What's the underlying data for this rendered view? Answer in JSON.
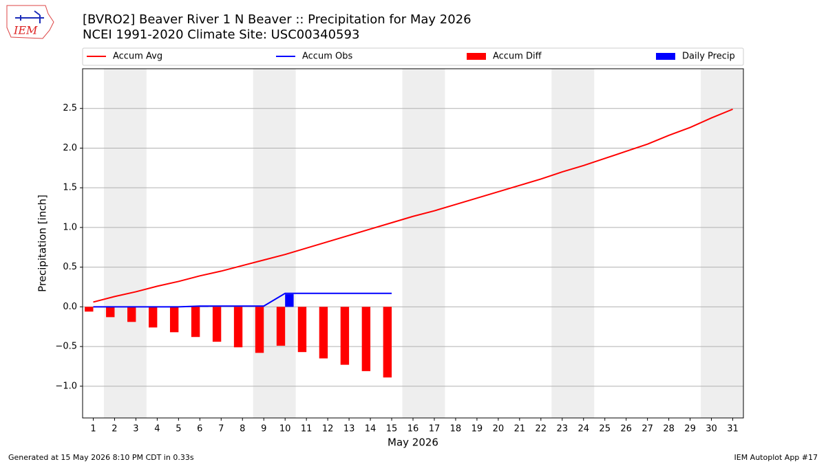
{
  "chart_data": {
    "type": "combo",
    "title": "[BVRO2] Beaver River 1 N Beaver :: Precipitation for May 2026",
    "subtitle": "NCEI 1991-2020 Climate Site: USC00340593",
    "logo_text": "IEM",
    "x_label": "May 2026",
    "y_label": "Precipitation [inch]",
    "x": [
      1,
      2,
      3,
      4,
      5,
      6,
      7,
      8,
      9,
      10,
      11,
      12,
      13,
      14,
      15,
      16,
      17,
      18,
      19,
      20,
      21,
      22,
      23,
      24,
      25,
      26,
      27,
      28,
      29,
      30,
      31
    ],
    "xlim": [
      0.5,
      31.5
    ],
    "xticks": [
      1,
      2,
      3,
      4,
      5,
      6,
      7,
      8,
      9,
      10,
      11,
      12,
      13,
      14,
      15,
      16,
      17,
      18,
      19,
      20,
      21,
      22,
      23,
      24,
      25,
      26,
      27,
      28,
      29,
      30,
      31
    ],
    "ylim": [
      -1.4,
      3.0
    ],
    "yticks": [
      {
        "value": -1.0,
        "label": "−1.0"
      },
      {
        "value": -0.5,
        "label": "−0.5"
      },
      {
        "value": 0,
        "label": "0.0"
      },
      0.5,
      {
        "value": 1,
        "label": "1.0"
      },
      1.5,
      {
        "value": 2,
        "label": "2.0"
      },
      2.5
    ],
    "grid": true,
    "weekend_shading": [
      [
        1.5,
        3.5
      ],
      [
        8.5,
        10.5
      ],
      [
        15.5,
        17.5
      ],
      [
        22.5,
        24.5
      ],
      [
        29.5,
        31.5
      ]
    ],
    "shading_color": "#eeeeee",
    "legend": "top",
    "series": [
      {
        "name": "Accum Avg",
        "type": "line",
        "color": "#ff0000",
        "values": [
          0.06,
          0.13,
          0.19,
          0.26,
          0.32,
          0.39,
          0.45,
          0.52,
          0.59,
          0.66,
          0.74,
          0.82,
          0.9,
          0.98,
          1.06,
          1.14,
          1.21,
          1.29,
          1.37,
          1.45,
          1.53,
          1.61,
          1.7,
          1.78,
          1.87,
          1.96,
          2.05,
          2.16,
          2.26,
          2.38,
          2.49
        ]
      },
      {
        "name": "Accum Obs",
        "type": "line",
        "color": "#0000ff",
        "values": [
          0,
          0,
          0,
          0,
          0,
          0.01,
          0.01,
          0.01,
          0.01,
          0.17,
          0.17,
          0.17,
          0.17,
          0.17,
          0.17,
          null,
          null,
          null,
          null,
          null,
          null,
          null,
          null,
          null,
          null,
          null,
          null,
          null,
          null,
          null,
          null
        ]
      },
      {
        "name": "Accum Diff",
        "type": "bar",
        "color": "#ff0000",
        "values": [
          -0.06,
          -0.13,
          -0.19,
          -0.26,
          -0.32,
          -0.38,
          -0.44,
          -0.51,
          -0.58,
          -0.49,
          -0.57,
          -0.65,
          -0.73,
          -0.81,
          -0.89,
          null,
          null,
          null,
          null,
          null,
          null,
          null,
          null,
          null,
          null,
          null,
          null,
          null,
          null,
          null,
          null
        ]
      },
      {
        "name": "Daily Precip",
        "type": "bar",
        "color": "#0000ff",
        "values": [
          0,
          0,
          0,
          0,
          0,
          0.01,
          0,
          0,
          0,
          0.16,
          0,
          0,
          0,
          0,
          0,
          null,
          null,
          null,
          null,
          null,
          null,
          null,
          null,
          null,
          null,
          null,
          null,
          null,
          null,
          null,
          null
        ]
      }
    ]
  },
  "footer": {
    "left": "Generated at 15 May 2026 8:10 PM CDT in 0.33s",
    "right": "IEM Autoplot App #17"
  }
}
